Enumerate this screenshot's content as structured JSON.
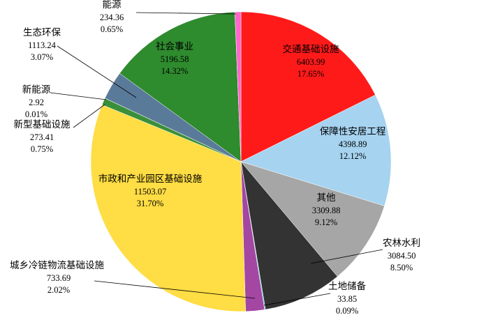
{
  "chart_data": {
    "type": "pie",
    "categories": [
      "交通基础设施",
      "保障性安居工程",
      "其他",
      "农林水利",
      "土地储备",
      "城乡冷链物流基础设施",
      "市政和产业园区基础设施",
      "新型基础设施",
      "新能源",
      "生态环保",
      "社会事业",
      "能源"
    ],
    "values": [
      6403.99,
      4398.89,
      3309.88,
      3084.5,
      33.85,
      733.69,
      11503.07,
      273.41,
      2.92,
      1113.24,
      5196.58,
      234.36
    ],
    "value_labels": [
      "6403.99",
      "4398.89",
      "3309.88",
      "3084.50",
      "33.85",
      "733.69",
      "11503.07",
      "273.41",
      "2.92",
      "1113.24",
      "5196.58",
      "234.36"
    ],
    "percent_labels": [
      "17.65%",
      "12.12%",
      "9.12%",
      "8.50%",
      "0.09%",
      "2.02%",
      "31.70%",
      "0.75%",
      "0.01%",
      "3.07%",
      "14.32%",
      "0.65%"
    ],
    "colors": [
      "#ff1a1a",
      "#a6d3f0",
      "#a6a6a6",
      "#333333",
      "#29c4d6",
      "#a347a3",
      "#ffdd44",
      "#3a8f3a",
      "#4a6fa5",
      "#5a7a99",
      "#2e8b2e",
      "#ff66cc"
    ]
  }
}
